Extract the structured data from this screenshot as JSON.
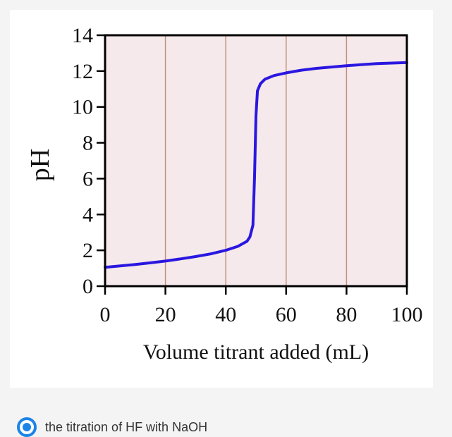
{
  "chart_data": {
    "type": "line",
    "xlabel": "Volume titrant added (mL)",
    "ylabel": "pH",
    "xlim": [
      0,
      100
    ],
    "ylim": [
      0,
      14
    ],
    "x_ticks": [
      0,
      20,
      40,
      60,
      80,
      100
    ],
    "y_ticks": [
      0,
      2,
      4,
      6,
      8,
      10,
      12,
      14
    ],
    "vertical_gridlines_at": [
      20,
      40,
      60,
      80
    ],
    "plot_background": "#f6e9eb",
    "gridline_color": "#c0927f",
    "line_color": "#2a17e0",
    "series": [
      {
        "values": [
          [
            0,
            1.05
          ],
          [
            5,
            1.13
          ],
          [
            10,
            1.21
          ],
          [
            15,
            1.3
          ],
          [
            20,
            1.4
          ],
          [
            25,
            1.52
          ],
          [
            30,
            1.65
          ],
          [
            35,
            1.8
          ],
          [
            40,
            2.0
          ],
          [
            44,
            2.22
          ],
          [
            47,
            2.5
          ],
          [
            48,
            2.75
          ],
          [
            49,
            3.4
          ],
          [
            49.5,
            6.0
          ],
          [
            50,
            9.5
          ],
          [
            50.5,
            10.9
          ],
          [
            51.5,
            11.3
          ],
          [
            53,
            11.55
          ],
          [
            56,
            11.75
          ],
          [
            60,
            11.9
          ],
          [
            65,
            12.05
          ],
          [
            70,
            12.15
          ],
          [
            80,
            12.3
          ],
          [
            90,
            12.42
          ],
          [
            100,
            12.48
          ]
        ]
      }
    ]
  },
  "option": {
    "text": "the titration of HF with NaOH"
  }
}
